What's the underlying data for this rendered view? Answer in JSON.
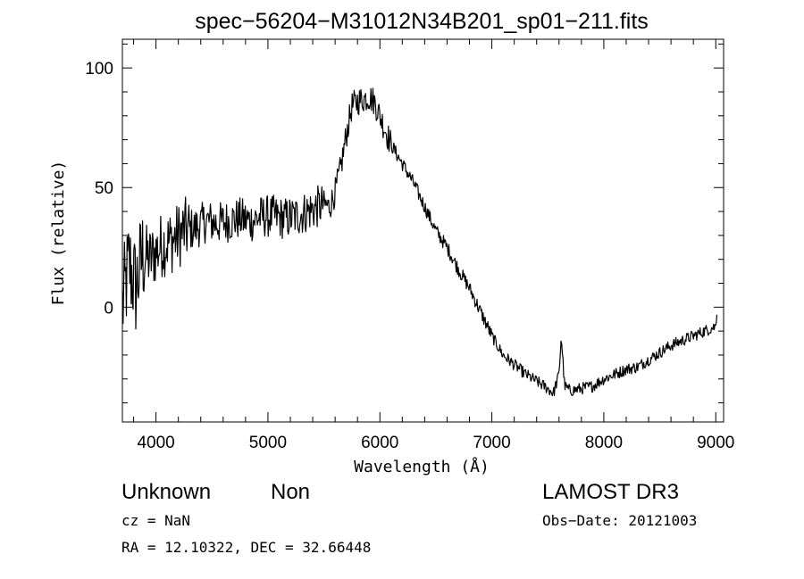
{
  "chart_data": {
    "type": "line",
    "title": "spec−56204−M31012N34B201_sp01−211.fits",
    "xlabel": "Wavelength (Å)",
    "ylabel": "Flux (relative)",
    "xlim": [
      3700,
      9070
    ],
    "ylim": [
      -48,
      112
    ],
    "x_ticks": [
      4000,
      5000,
      6000,
      7000,
      8000,
      9000
    ],
    "x_tick_labels": [
      "4000",
      "5000",
      "6000",
      "7000",
      "8000",
      "9000"
    ],
    "y_ticks": [
      0,
      50,
      100
    ],
    "y_tick_labels": [
      "0",
      "50",
      "100"
    ],
    "grid": false,
    "series": [
      {
        "color": "#000000",
        "x": [
          3700,
          3760,
          3820,
          3880,
          3950,
          4050,
          4150,
          4250,
          4350,
          4450,
          4550,
          4650,
          4750,
          4850,
          4950,
          5050,
          5150,
          5250,
          5350,
          5450,
          5500,
          5550,
          5600,
          5650,
          5700,
          5750,
          5800,
          5850,
          5900,
          5950,
          6000,
          6050,
          6100,
          6200,
          6300,
          6400,
          6500,
          6600,
          6700,
          6800,
          6900,
          7000,
          7100,
          7200,
          7300,
          7400,
          7500,
          7550,
          7600,
          7620,
          7650,
          7700,
          7800,
          7900,
          8000,
          8100,
          8200,
          8300,
          8400,
          8500,
          8600,
          8700,
          8800,
          8900,
          9000,
          9010
        ],
        "y": [
          0,
          18,
          8,
          22,
          20,
          26,
          28,
          32,
          33,
          36,
          35,
          36,
          37,
          36,
          38,
          38,
          37,
          38,
          40,
          42,
          43,
          42,
          48,
          58,
          72,
          84,
          86,
          87,
          88,
          86,
          80,
          74,
          68,
          60,
          52,
          42,
          32,
          25,
          16,
          8,
          -2,
          -12,
          -20,
          -24,
          -28,
          -31,
          -34,
          -36,
          -28,
          -12,
          -33,
          -35,
          -34,
          -33,
          -30,
          -28,
          -26,
          -25,
          -22,
          -19,
          -16,
          -14,
          -12,
          -10,
          -8,
          -1
        ]
      }
    ]
  },
  "footer": {
    "object_class": "Unknown",
    "subclass": "Non",
    "survey": "LAMOST DR3",
    "cz": "cz = NaN",
    "obs_date": "Obs−Date: 20121003",
    "coords": "RA =  12.10322, DEC =  32.66448"
  }
}
